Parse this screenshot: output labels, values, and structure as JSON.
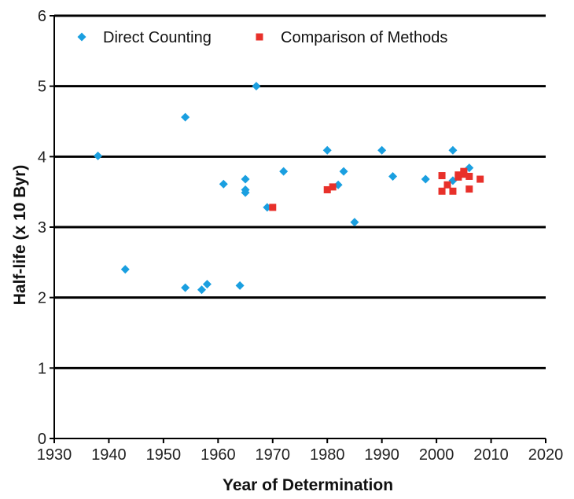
{
  "chart_data": {
    "type": "scatter",
    "title": "",
    "xlabel": "Year of Determination",
    "ylabel": "Half-life (x 10 Byr)",
    "xlim": [
      1930,
      2020
    ],
    "ylim": [
      0,
      6
    ],
    "x_ticks": [
      "1930",
      "1940",
      "1950",
      "1960",
      "1970",
      "1980",
      "1990",
      "2000",
      "2010",
      "2020"
    ],
    "y_ticks": [
      "0",
      "1",
      "2",
      "3",
      "4",
      "5",
      "6"
    ],
    "grid": "horizontal",
    "legend_position": "top",
    "series": [
      {
        "name": "Direct Counting",
        "color": "#1a9fe0",
        "marker": "diamond",
        "points": [
          [
            1938,
            4.01
          ],
          [
            1943,
            2.4
          ],
          [
            1954,
            4.56
          ],
          [
            1954,
            2.14
          ],
          [
            1957,
            2.11
          ],
          [
            1958,
            2.19
          ],
          [
            1961,
            3.61
          ],
          [
            1964,
            2.17
          ],
          [
            1965,
            3.68
          ],
          [
            1965,
            3.53
          ],
          [
            1965,
            3.49
          ],
          [
            1967,
            5.0
          ],
          [
            1969,
            3.28
          ],
          [
            1972,
            3.79
          ],
          [
            1980,
            4.09
          ],
          [
            1982,
            3.6
          ],
          [
            1983,
            3.79
          ],
          [
            1985,
            3.07
          ],
          [
            1990,
            4.09
          ],
          [
            1992,
            3.72
          ],
          [
            1998,
            3.68
          ],
          [
            2003,
            4.09
          ],
          [
            2003,
            3.66
          ],
          [
            2006,
            3.84
          ]
        ]
      },
      {
        "name": "Comparison of Methods",
        "color": "#e8302a",
        "marker": "square",
        "points": [
          [
            1970,
            3.28
          ],
          [
            1980,
            3.53
          ],
          [
            1981,
            3.57
          ],
          [
            2001,
            3.73
          ],
          [
            2001,
            3.51
          ],
          [
            2002,
            3.6
          ],
          [
            2003,
            3.51
          ],
          [
            2004,
            3.71
          ],
          [
            2004,
            3.74
          ],
          [
            2005,
            3.79
          ],
          [
            2005,
            3.75
          ],
          [
            2006,
            3.72
          ],
          [
            2006,
            3.54
          ],
          [
            2008,
            3.68
          ]
        ]
      }
    ]
  }
}
